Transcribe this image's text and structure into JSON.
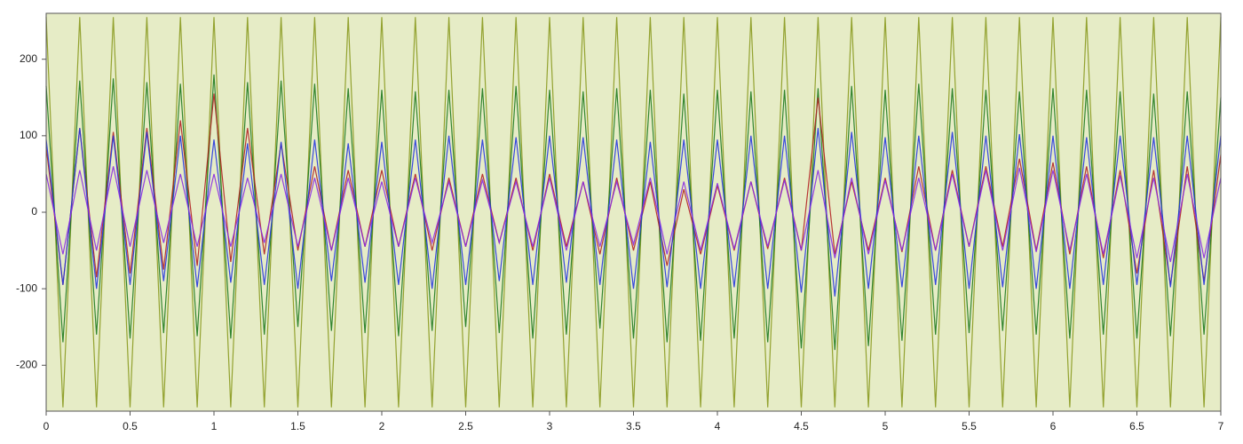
{
  "chart_data": {
    "type": "line",
    "x": [
      0,
      0.1,
      0.2,
      0.3,
      0.4,
      0.5,
      0.6,
      0.7,
      0.8,
      0.9,
      1,
      1.1,
      1.2,
      1.3,
      1.4,
      1.5,
      1.6,
      1.7,
      1.8,
      1.9,
      2,
      2.1,
      2.2,
      2.3,
      2.4,
      2.5,
      2.6,
      2.7,
      2.8,
      2.9,
      3,
      3.1,
      3.2,
      3.3,
      3.4,
      3.5,
      3.6,
      3.7,
      3.8,
      3.9,
      4,
      4.1,
      4.2,
      4.3,
      4.4,
      4.5,
      4.6,
      4.7,
      4.8,
      4.9,
      5,
      5.1,
      5.2,
      5.3,
      5.4,
      5.5,
      5.6,
      5.7,
      5.8,
      5.9,
      6,
      6.1,
      6.2,
      6.3,
      6.4,
      6.5,
      6.6,
      6.7,
      6.8,
      6.9,
      7
    ],
    "series": [
      {
        "color": "#8a9a1f",
        "values": [
          255,
          -255,
          255,
          -255,
          255,
          -255,
          255,
          -255,
          255,
          -255,
          255,
          -255,
          255,
          -255,
          255,
          -255,
          255,
          -255,
          255,
          -255,
          255,
          -255,
          255,
          -255,
          255,
          -255,
          255,
          -255,
          255,
          -255,
          255,
          -255,
          255,
          -255,
          255,
          -255,
          255,
          -255,
          255,
          -255,
          255,
          -255,
          255,
          -255,
          255,
          -255,
          255,
          -255,
          255,
          -255,
          255,
          -255,
          255,
          -255,
          255,
          -255,
          255,
          -255,
          255,
          -255,
          255,
          -255,
          255,
          -255,
          255,
          -255,
          255,
          -255,
          255,
          -255,
          255
        ]
      },
      {
        "color": "#1e7a1e",
        "values": [
          165,
          -170,
          172,
          -160,
          175,
          -165,
          170,
          -158,
          168,
          -162,
          180,
          -165,
          170,
          -160,
          172,
          -150,
          168,
          -155,
          162,
          -158,
          160,
          -162,
          158,
          -155,
          160,
          -150,
          162,
          -158,
          165,
          -165,
          160,
          -160,
          158,
          -152,
          162,
          -165,
          160,
          -170,
          155,
          -168,
          160,
          -165,
          158,
          -170,
          160,
          -178,
          162,
          -180,
          165,
          -175,
          160,
          -168,
          168,
          -160,
          162,
          -158,
          160,
          -155,
          158,
          -160,
          162,
          -165,
          160,
          -160,
          158,
          -165,
          155,
          -162,
          158,
          -160,
          150
        ]
      },
      {
        "color": "#b22222",
        "values": [
          85,
          -95,
          110,
          -85,
          105,
          -80,
          110,
          -75,
          120,
          -70,
          155,
          -65,
          110,
          -55,
          90,
          -50,
          60,
          -50,
          55,
          -45,
          55,
          -45,
          50,
          -50,
          45,
          -45,
          50,
          -40,
          45,
          -50,
          50,
          -45,
          40,
          -55,
          45,
          -50,
          40,
          -70,
          30,
          -55,
          35,
          -50,
          40,
          -48,
          45,
          -50,
          150,
          -55,
          40,
          -50,
          45,
          -52,
          60,
          -50,
          55,
          -45,
          60,
          -45,
          70,
          -50,
          65,
          -55,
          60,
          -60,
          55,
          -80,
          55,
          -95,
          60,
          -90,
          75
        ]
      },
      {
        "color": "#2436e0",
        "values": [
          95,
          -95,
          110,
          -100,
          100,
          -95,
          105,
          -90,
          100,
          -98,
          95,
          -92,
          90,
          -95,
          92,
          -100,
          95,
          -90,
          90,
          -92,
          92,
          -95,
          95,
          -100,
          100,
          -95,
          95,
          -90,
          98,
          -95,
          100,
          -92,
          98,
          -95,
          95,
          -100,
          92,
          -98,
          95,
          -100,
          95,
          -98,
          100,
          -100,
          100,
          -105,
          110,
          -110,
          105,
          -100,
          98,
          -98,
          100,
          -95,
          105,
          -100,
          100,
          -98,
          102,
          -100,
          100,
          -100,
          98,
          -95,
          100,
          -95,
          98,
          -98,
          100,
          -95,
          100
        ]
      },
      {
        "color": "#8a2be2",
        "values": [
          50,
          -55,
          55,
          -50,
          60,
          -45,
          55,
          -40,
          50,
          -45,
          50,
          -45,
          45,
          -40,
          50,
          -45,
          45,
          -50,
          45,
          -45,
          40,
          -45,
          45,
          -40,
          40,
          -45,
          42,
          -40,
          40,
          -45,
          45,
          -50,
          40,
          -45,
          40,
          -42,
          45,
          -55,
          40,
          -50,
          38,
          -48,
          40,
          -45,
          42,
          -50,
          55,
          -60,
          45,
          -55,
          42,
          -50,
          45,
          -50,
          50,
          -45,
          55,
          -50,
          58,
          -52,
          55,
          -50,
          50,
          -55,
          48,
          -60,
          45,
          -65,
          50,
          -60,
          45
        ]
      }
    ],
    "xlim": [
      0,
      7
    ],
    "xticks": [
      0,
      0.5,
      1,
      1.5,
      2,
      2.5,
      3,
      3.5,
      4,
      4.5,
      5,
      5.5,
      6,
      6.5,
      7
    ],
    "ylim": [
      -260,
      260
    ],
    "yticks": [
      -200,
      -100,
      0,
      100,
      200
    ],
    "background_color": "#e6ecc6"
  }
}
